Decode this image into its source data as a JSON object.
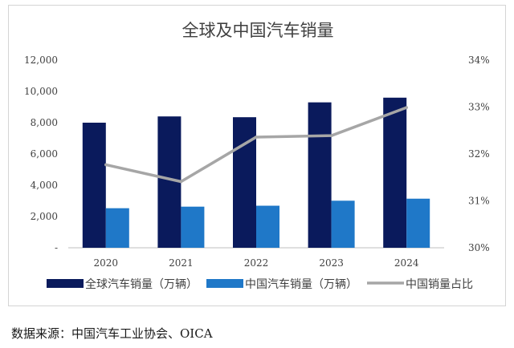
{
  "chart_data": {
    "type": "bar",
    "title": "全球及中国汽车销量",
    "categories": [
      "2020",
      "2021",
      "2022",
      "2023",
      "2024"
    ],
    "series": [
      {
        "name": "全球汽车销量（万辆）",
        "kind": "bar",
        "axis": "left",
        "color": "#0a1a5c",
        "values": [
          8000,
          8400,
          8350,
          9300,
          9600
        ]
      },
      {
        "name": "中国汽车销量（万辆）",
        "kind": "bar",
        "axis": "left",
        "color": "#1f78c8",
        "values": [
          2530,
          2630,
          2690,
          3010,
          3140
        ]
      },
      {
        "name": "中国销量占比",
        "kind": "line",
        "axis": "right",
        "color": "#a6a6a6",
        "values": [
          31.77,
          31.41,
          32.36,
          32.39,
          32.99
        ]
      }
    ],
    "left_axis": {
      "min": 0,
      "max": 12000,
      "step": 2000,
      "tick_labels": [
        "-",
        "2,000",
        "4,000",
        "6,000",
        "8,000",
        "10,000",
        "12,000"
      ]
    },
    "right_axis": {
      "min": 30,
      "max": 34,
      "step": 1,
      "tick_labels": [
        "30%",
        "31%",
        "32%",
        "33%",
        "34%"
      ]
    },
    "grid": false,
    "legend_position": "bottom"
  },
  "source_text": "数据来源：中国汽车工业协会、OICA"
}
